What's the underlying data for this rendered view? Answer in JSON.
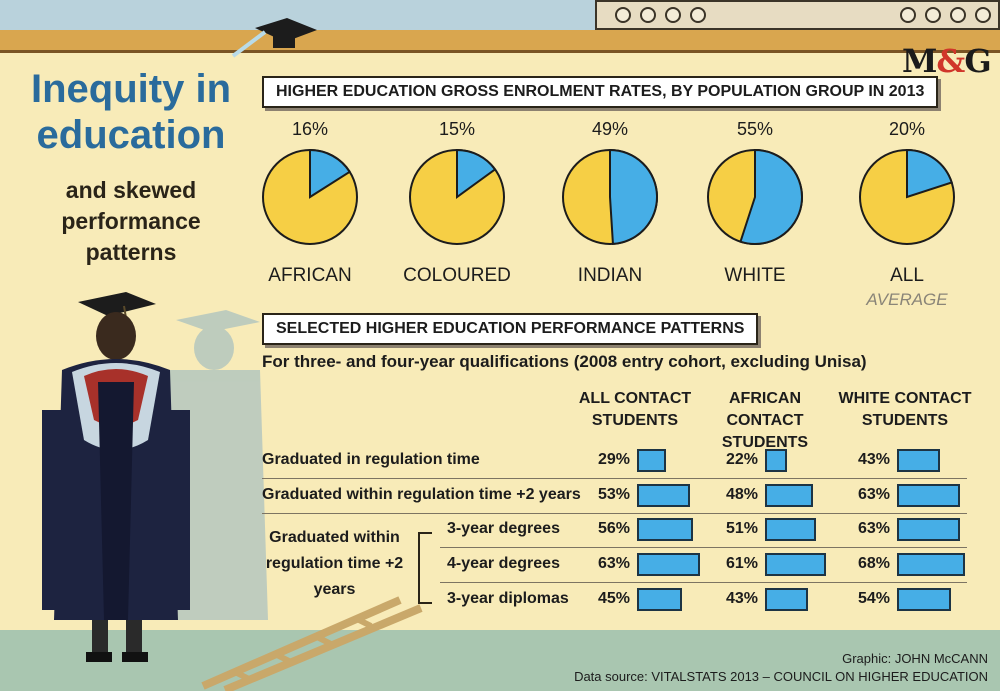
{
  "colors": {
    "pie_base": "#f6cf45",
    "pie_share": "#46aee6",
    "bar": "#46aee6",
    "title": "#2a6b9c"
  },
  "brand": {
    "logo_left": "M",
    "logo_amp": "&",
    "logo_right": "G"
  },
  "header": {
    "title_line1": "Inequity in",
    "title_line2": "education",
    "subtitle_line1": "and skewed",
    "subtitle_line2": "performance",
    "subtitle_line3": "patterns"
  },
  "section1": {
    "heading": "HIGHER EDUCATION GROSS ENROLMENT RATES, BY POPULATION GROUP IN 2013"
  },
  "section2": {
    "heading": "SELECTED HIGHER EDUCATION PERFORMANCE PATTERNS",
    "note": "For three- and four-year qualifications (2008 entry cohort, excluding Unisa)",
    "group_label": "Graduated within regulation time +2 years"
  },
  "credits": {
    "graphic": "Graphic: JOHN McCANN",
    "source": "Data source: VITALSTATS 2013 – COUNCIL ON HIGHER EDUCATION"
  },
  "chart_data": [
    {
      "type": "pie",
      "title": "HIGHER EDUCATION GROSS ENROLMENT RATES, BY POPULATION GROUP IN 2013",
      "categories": [
        "AFRICAN",
        "COLOURED",
        "INDIAN",
        "WHITE",
        "ALL"
      ],
      "category_notes": [
        "",
        "",
        "",
        "",
        "AVERAGE"
      ],
      "values": [
        16,
        15,
        49,
        55,
        20
      ],
      "labels": [
        "16%",
        "15%",
        "49%",
        "55%",
        "20%"
      ],
      "unit": "%"
    },
    {
      "type": "bar",
      "title": "SELECTED HIGHER EDUCATION PERFORMANCE PATTERNS",
      "subtitle": "For three- and four-year qualifications (2008 entry cohort, excluding Unisa)",
      "columns": [
        "ALL CONTACT\nSTUDENTS",
        "AFRICAN CONTACT\nSTUDENTS",
        "WHITE CONTACT\nSTUDENTS"
      ],
      "rows": [
        "Graduated in regulation time",
        "Graduated within regulation time +2 years",
        "3-year degrees",
        "4-year degrees",
        "3-year diplomas"
      ],
      "series": [
        {
          "name": "ALL CONTACT STUDENTS",
          "values": [
            29,
            53,
            56,
            63,
            45
          ],
          "labels": [
            "29%",
            "53%",
            "56%",
            "63%",
            "45%"
          ]
        },
        {
          "name": "AFRICAN CONTACT STUDENTS",
          "values": [
            22,
            48,
            51,
            61,
            43
          ],
          "labels": [
            "22%",
            "48%",
            "51%",
            "61%",
            "43%"
          ]
        },
        {
          "name": "WHITE CONTACT STUDENTS",
          "values": [
            43,
            63,
            63,
            68,
            54
          ],
          "labels": [
            "43%",
            "63%",
            "63%",
            "68%",
            "54%"
          ]
        }
      ],
      "unit": "%"
    }
  ]
}
